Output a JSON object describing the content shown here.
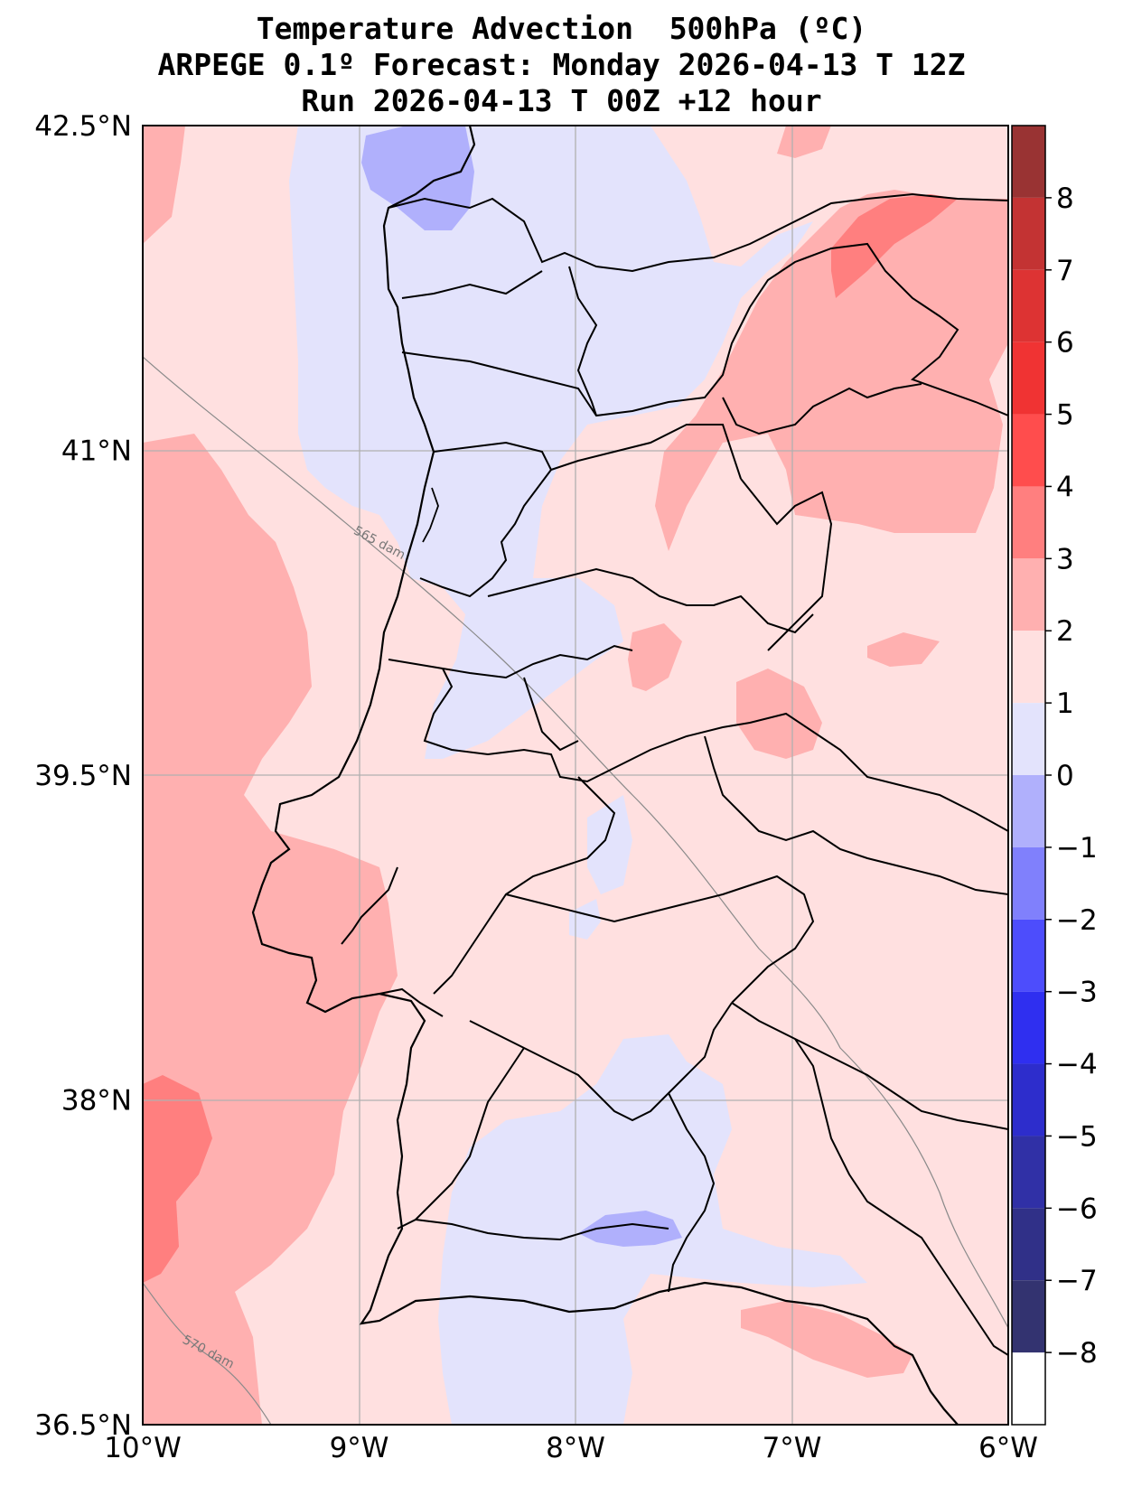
{
  "title": {
    "line1": "Temperature Advection  500hPa (ºC)",
    "line2": "ARPEGE 0.1º Forecast: Monday 2026-04-13 T 12Z",
    "line3": "Run 2026-04-13 T 00Z +12 hour"
  },
  "map": {
    "lon_range": [
      -10,
      -6
    ],
    "lat_range": [
      36.5,
      42.5
    ],
    "x_ticks": [
      {
        "lon": -10,
        "label": "10°W"
      },
      {
        "lon": -9,
        "label": "9°W"
      },
      {
        "lon": -8,
        "label": "8°W"
      },
      {
        "lon": -7,
        "label": "7°W"
      },
      {
        "lon": -6,
        "label": "6°W"
      }
    ],
    "y_ticks": [
      {
        "lat": 42.5,
        "label": "42.5°N"
      },
      {
        "lat": 41,
        "label": "41°N"
      },
      {
        "lat": 39.5,
        "label": "39.5°N"
      },
      {
        "lat": 38,
        "label": "38°N"
      },
      {
        "lat": 36.5,
        "label": "36.5°N"
      }
    ],
    "grid": true,
    "geopotential_contours": [
      {
        "label": "565 dam"
      },
      {
        "label": "570 dam"
      }
    ]
  },
  "colorbar": {
    "levels": [
      -9,
      -8,
      -7,
      -6,
      -5,
      -4,
      -3,
      -2,
      -1,
      0,
      1,
      2,
      3,
      4,
      5,
      6,
      7,
      8,
      9
    ],
    "tick_labels": [
      "8",
      "7",
      "6",
      "5",
      "4",
      "3",
      "2",
      "1",
      "0",
      "−1",
      "−2",
      "−3",
      "−4",
      "−5",
      "−6",
      "−7",
      "−8"
    ],
    "tick_values": [
      8,
      7,
      6,
      5,
      4,
      3,
      2,
      1,
      0,
      -1,
      -2,
      -3,
      -4,
      -5,
      -6,
      -7,
      -8
    ],
    "colors_top_to_bottom": [
      "#993333",
      "#c33333",
      "#dd3333",
      "#f03333",
      "#ff4d4d",
      "#ff7f7f",
      "#ffb0b0",
      "#ffe0e0",
      "#e3e3fc",
      "#b0b0fc",
      "#8080fc",
      "#4d4dfc",
      "#2f2ff0",
      "#2d2dcc",
      "#3030a6",
      "#303088",
      "#333370"
    ]
  }
}
